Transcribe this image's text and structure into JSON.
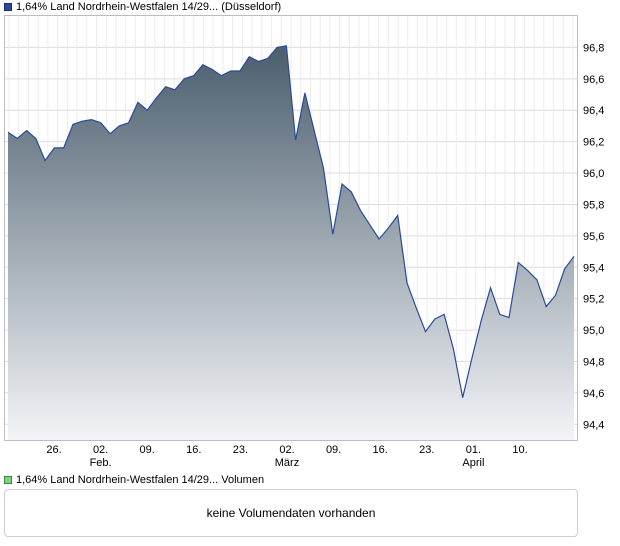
{
  "price_legend": {
    "label": "1,64% Land Nordrhein-Westfalen 14/29... (Düsseldorf)",
    "color": "#2b4a9b"
  },
  "volume_legend": {
    "label": "1,64% Land Nordrhein-Westfalen 14/29... Volumen",
    "color": "#7fcf7f"
  },
  "volume_panel": {
    "message": "keine Volumendaten vorhanden"
  },
  "chart_data": {
    "type": "area",
    "title": "1,64% Land Nordrhein-Westfalen 14/29... (Düsseldorf)",
    "xlabel": "",
    "ylabel": "",
    "ylim": [
      94.3,
      97.0
    ],
    "grid": true,
    "y_ticks": [
      "94,4",
      "94,6",
      "94,8",
      "95,0",
      "95,2",
      "95,4",
      "95,6",
      "95,8",
      "96,0",
      "96,2",
      "96,4",
      "96,6",
      "96,8"
    ],
    "x_ticks": [
      {
        "label": "26.",
        "sub": ""
      },
      {
        "label": "02.",
        "sub": "Feb."
      },
      {
        "label": "09.",
        "sub": ""
      },
      {
        "label": "16.",
        "sub": ""
      },
      {
        "label": "23.",
        "sub": ""
      },
      {
        "label": "02.",
        "sub": "März"
      },
      {
        "label": "09.",
        "sub": ""
      },
      {
        "label": "16.",
        "sub": ""
      },
      {
        "label": "23.",
        "sub": ""
      },
      {
        "label": "01.",
        "sub": "April"
      },
      {
        "label": "10.",
        "sub": ""
      }
    ],
    "line_color": "#2b4a9b",
    "fill_top_color": "#4a5e6d",
    "fill_bottom_color": "#f3f4f7",
    "series": [
      {
        "values": [
          96.26,
          96.22,
          96.27,
          96.22,
          96.08,
          96.16,
          96.16,
          96.31,
          96.33,
          96.34,
          96.32,
          96.25,
          96.3,
          96.32,
          96.45,
          96.4,
          96.48,
          96.55,
          96.53,
          96.6,
          96.62,
          96.69,
          96.66,
          96.62,
          96.65,
          96.65,
          96.74,
          96.71,
          96.73,
          96.8,
          96.81,
          96.21,
          96.51,
          96.27,
          96.03,
          95.61,
          95.93,
          95.88,
          95.76,
          95.67,
          95.58,
          95.65,
          95.73,
          95.3,
          95.14,
          94.99,
          95.07,
          95.1,
          94.88,
          94.57,
          94.82,
          95.06,
          95.27,
          95.1,
          95.08,
          95.43,
          95.38,
          95.32,
          95.15,
          95.22,
          95.39,
          95.47
        ]
      }
    ]
  }
}
